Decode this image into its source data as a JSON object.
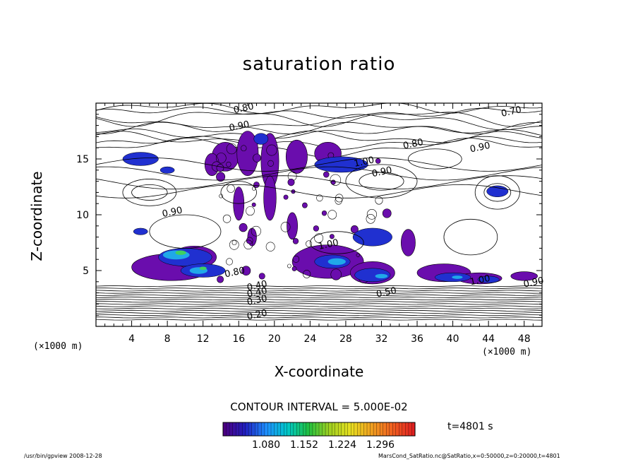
{
  "chart_data": {
    "type": "heatmap",
    "title": "saturation ratio",
    "xlabel": "X-coordinate",
    "ylabel": "Z-coordinate",
    "x_unit": "(×1000 m)",
    "x_unit_right": "(×1000 m)",
    "xlim": [
      0,
      50
    ],
    "ylim": [
      0,
      20
    ],
    "x_ticks": [
      4,
      8,
      12,
      16,
      20,
      24,
      28,
      32,
      36,
      40,
      44,
      48
    ],
    "y_ticks": [
      5,
      10,
      15
    ],
    "contour_interval": "CONTOUR INTERVAL = 5.000E-02",
    "colorbar_ticks": [
      "1.080",
      "1.152",
      "1.224",
      "1.296"
    ],
    "colorbar_colors": [
      "#4b0082",
      "#2020c0",
      "#1e90ff",
      "#00c8c8",
      "#20c040",
      "#a0d020",
      "#e8e020",
      "#f0a020",
      "#f06020",
      "#e02020"
    ],
    "contour_labels": [
      "0.80",
      "0.70",
      "0.90",
      "0.80",
      "0.90",
      "0.90",
      "1.00",
      "0.90",
      "1.00",
      "1.00",
      "0.40",
      "0.40",
      "0.30",
      "0.20",
      "0.50",
      "0.90",
      "0.80"
    ],
    "time": "t=4801 s"
  },
  "footer": {
    "left": "/usr/bin/gpview  2008-12-28",
    "right": "MarsCond_SatRatio.nc@SatRatio,x=0:50000,z=0:20000,t=4801"
  }
}
